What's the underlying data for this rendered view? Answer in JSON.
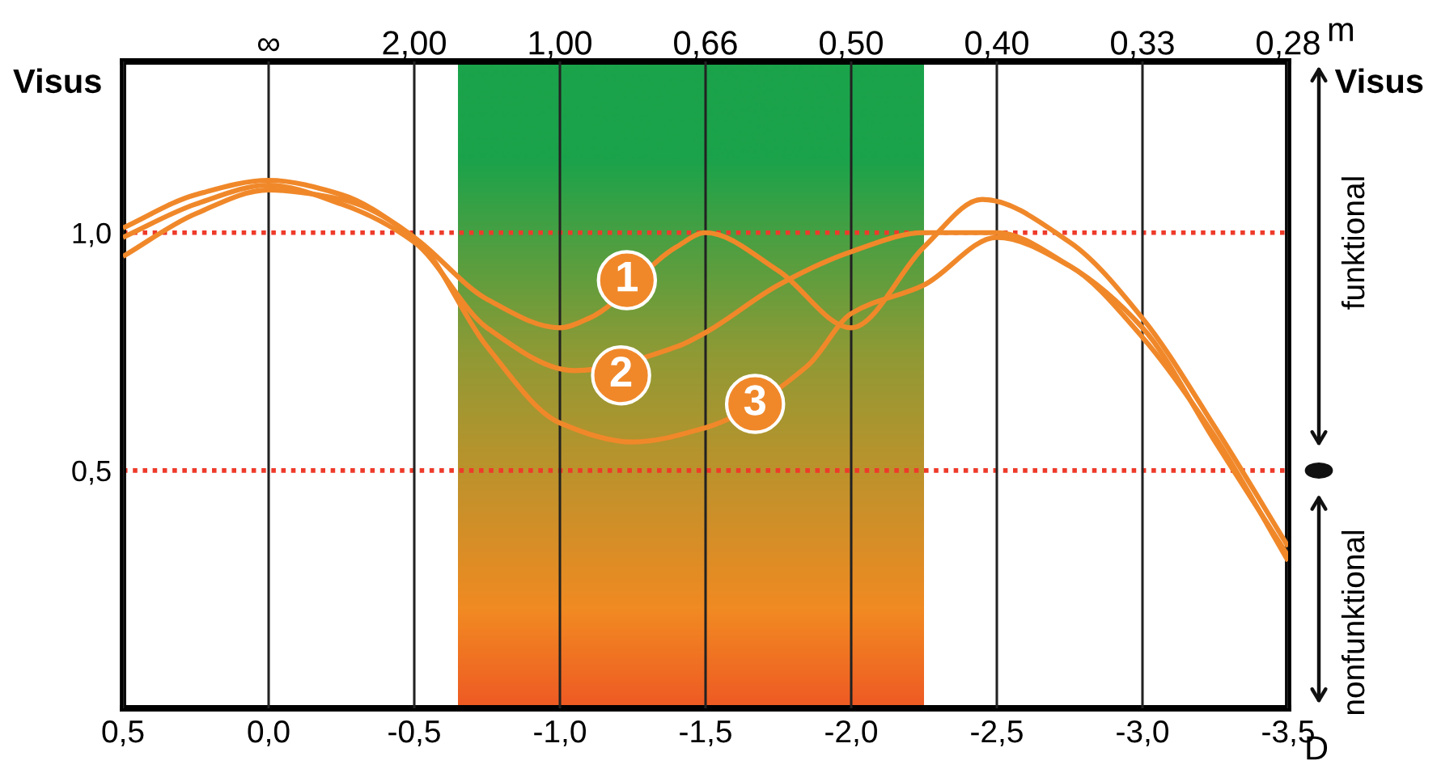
{
  "chart_data": {
    "type": "line",
    "xlabel": "D",
    "ylabel": "Visus",
    "series": [
      {
        "color": "#f0882a",
        "x": [
          0.5,
          0.25,
          0.0,
          -0.25,
          -0.5,
          -0.75,
          -1.0,
          -1.1,
          -1.4,
          -1.5,
          -1.75,
          -2.0,
          -2.25,
          -2.45,
          -2.75,
          -3.0,
          -3.25,
          -3.5
        ],
        "values": [
          1.01,
          1.08,
          1.11,
          1.08,
          0.99,
          0.86,
          0.8,
          0.82,
          0.97,
          1.0,
          0.92,
          0.8,
          0.97,
          1.07,
          0.98,
          0.82,
          0.59,
          0.34
        ]
      },
      {
        "color": "#f0882a",
        "x": [
          0.5,
          0.25,
          0.0,
          -0.25,
          -0.5,
          -0.75,
          -1.05,
          -1.4,
          -1.5,
          -1.75,
          -2.0,
          -2.25,
          -2.5,
          -2.75,
          -3.0,
          -3.25,
          -3.5
        ],
        "values": [
          0.99,
          1.06,
          1.1,
          1.06,
          0.98,
          0.8,
          0.71,
          0.76,
          0.79,
          0.89,
          0.96,
          1.0,
          1.0,
          0.93,
          0.8,
          0.56,
          0.32
        ]
      },
      {
        "color": "#f0882a",
        "x": [
          0.5,
          0.25,
          0.0,
          -0.25,
          -0.5,
          -0.75,
          -1.0,
          -1.25,
          -1.5,
          -1.85,
          -2.0,
          -2.25,
          -2.5,
          -2.75,
          -3.0,
          -3.25,
          -3.5
        ],
        "values": [
          0.95,
          1.04,
          1.09,
          1.07,
          0.99,
          0.76,
          0.6,
          0.56,
          0.59,
          0.72,
          0.83,
          0.89,
          0.99,
          0.93,
          0.78,
          0.57,
          0.31
        ]
      }
    ],
    "xlim": [
      0.5,
      -3.5
    ],
    "ylim": [
      0,
      1.36
    ],
    "xticks": [
      {
        "value": 0.5,
        "label": "0,5"
      },
      {
        "value": 0.0,
        "label": "0,0"
      },
      {
        "value": -0.5,
        "label": "-0,5"
      },
      {
        "value": -1.0,
        "label": "-1,0"
      },
      {
        "value": -1.5,
        "label": "-1,5"
      },
      {
        "value": -2.0,
        "label": "-2,0"
      },
      {
        "value": -2.5,
        "label": "-2,5"
      },
      {
        "value": -3.0,
        "label": "-3,0"
      },
      {
        "value": -3.5,
        "label": "-3,5"
      }
    ],
    "yticks": [
      {
        "value": 1.0,
        "label": "1,0"
      },
      {
        "value": 0.5,
        "label": "0,5"
      }
    ],
    "grid": "x",
    "line_style": "solid",
    "marker": "none",
    "legend": false,
    "ref_lines": [
      {
        "axis": "y",
        "value": 1.0,
        "color": "#ee3a2a",
        "line_style": "dotted"
      },
      {
        "axis": "y",
        "value": 0.5,
        "color": "#ee3a2a",
        "line_style": "dotted"
      }
    ],
    "bands": [
      {
        "axis": "x",
        "from": -0.65,
        "to": -2.25,
        "color": "#1ba34b"
      }
    ],
    "annotations": [
      {
        "text": "1",
        "x": -1.23,
        "y": 0.9
      },
      {
        "text": "2",
        "x": -1.21,
        "y": 0.7
      },
      {
        "text": "3",
        "x": -1.67,
        "y": 0.64
      },
      "∞",
      "2,00",
      "1,00",
      "0,66",
      "0,50",
      "0,40",
      "0,33",
      "0,28",
      "Visus",
      "funktional",
      "nonfunktional",
      "m"
    ]
  }
}
